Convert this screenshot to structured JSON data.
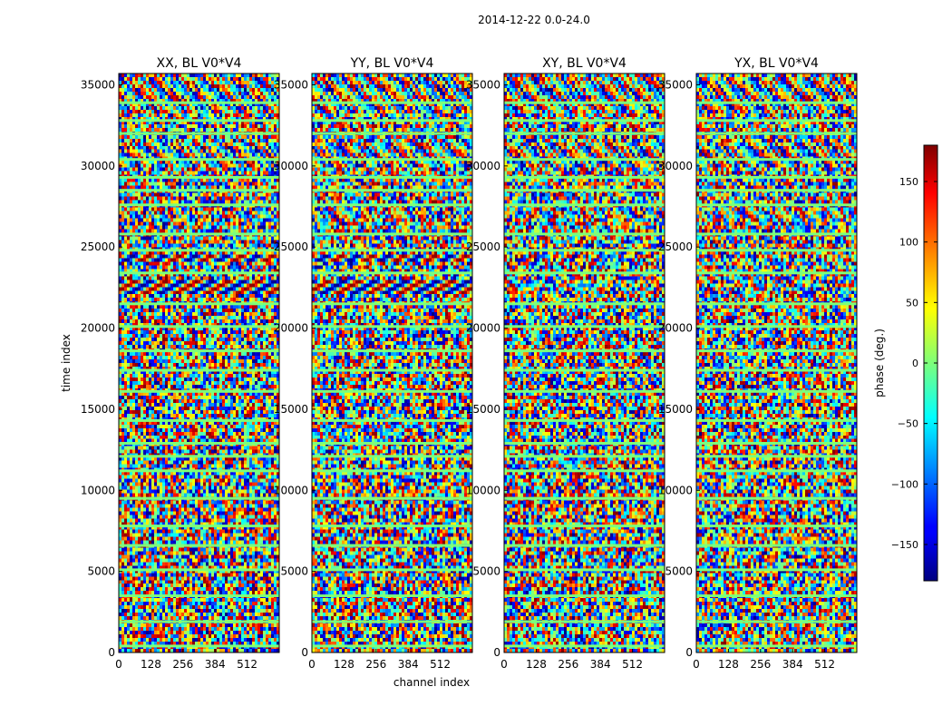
{
  "figure": {
    "suptitle": "2014-12-22 0.0-24.0",
    "xlabel": "channel index",
    "ylabel": "time index"
  },
  "chart_data": {
    "type": "heatmap",
    "colormap": "jet",
    "panels": [
      {
        "title": "XX, BL V0*V4",
        "strong_fringe_bands": [
          [
            22000,
            23000
          ],
          [
            24000,
            24500
          ]
        ],
        "hatched_bands": [
          [
            30000,
            31500
          ],
          [
            26800,
            27200
          ],
          [
            33300,
            35500
          ]
        ]
      },
      {
        "title": "YY, BL V0*V4",
        "strong_fringe_bands": [
          [
            22000,
            23000
          ],
          [
            24000,
            24500
          ]
        ],
        "hatched_bands": [
          [
            30000,
            31500
          ],
          [
            26800,
            27200
          ],
          [
            33300,
            35500
          ]
        ]
      },
      {
        "title": "XY, BL V0*V4",
        "strong_fringe_bands": [],
        "hatched_bands": [
          [
            30000,
            31500
          ],
          [
            26800,
            27200
          ],
          [
            33300,
            35500
          ]
        ]
      },
      {
        "title": "YX, BL V0*V4",
        "strong_fringe_bands": [],
        "hatched_bands": [
          [
            30000,
            31500
          ],
          [
            26800,
            27200
          ],
          [
            33300,
            35500
          ]
        ]
      }
    ],
    "xlim": [
      0,
      640
    ],
    "ylim": [
      0,
      35700
    ],
    "xticks": [
      0,
      128,
      256,
      384,
      512
    ],
    "yticks": [
      0,
      5000,
      10000,
      15000,
      20000,
      25000,
      30000,
      35000
    ],
    "flag_rows": [
      400,
      1900,
      3500,
      5100,
      6600,
      7800,
      9500,
      11200,
      12100,
      12900,
      14300,
      16100,
      17400,
      18600,
      20100,
      21500,
      23400,
      24800,
      25800,
      27600,
      28500,
      29300,
      30400,
      32000,
      32800,
      33900
    ],
    "colorbar": {
      "label": "phase (deg.)",
      "range": [
        -180,
        180
      ],
      "ticks": [
        -150,
        -100,
        -50,
        0,
        50,
        100,
        150
      ],
      "tick_labels": [
        "−150",
        "−100",
        "−50",
        "0",
        "50",
        "100",
        "150"
      ]
    }
  }
}
